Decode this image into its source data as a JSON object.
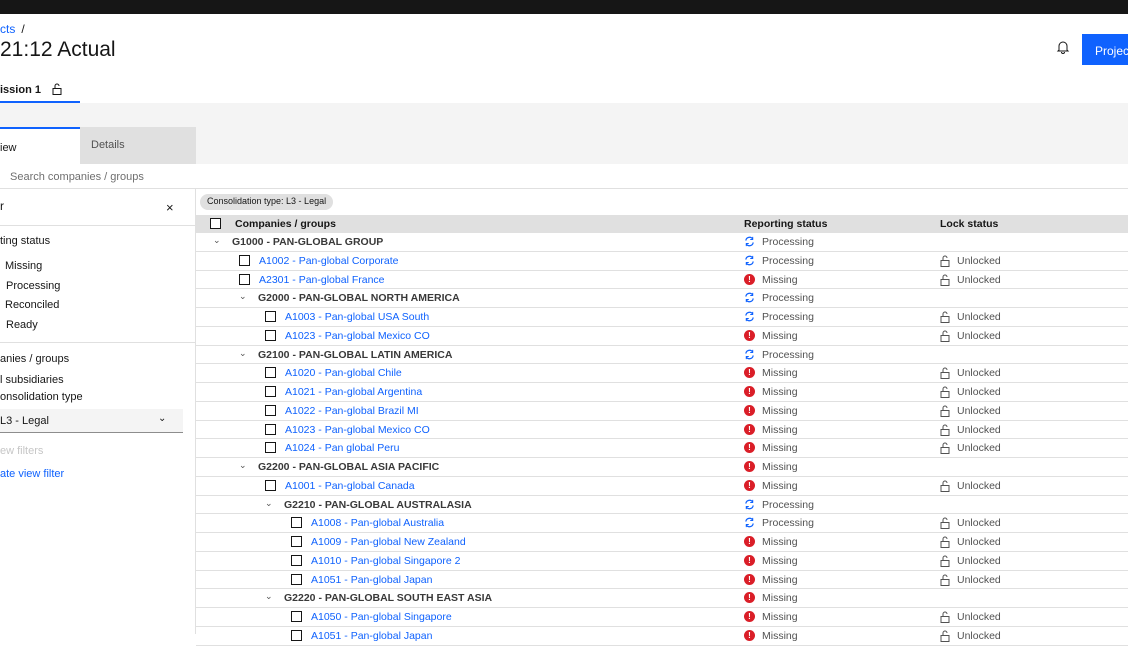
{
  "header": {
    "breadcrumb": "cts",
    "breadcrumb_sep": "/",
    "title": "21:12 Actual",
    "project_button": "Project"
  },
  "subtab": {
    "label": "ission 1"
  },
  "tabs": [
    {
      "label": "iew"
    },
    {
      "label": "Details"
    }
  ],
  "search": {
    "placeholder": "Search companies / groups"
  },
  "filter": {
    "title": "r",
    "close": "×",
    "reporting_heading": "ting status",
    "statuses": [
      "Missing",
      "Processing",
      "Reconciled",
      "Ready"
    ],
    "companies_heading": "anies / groups",
    "subsidiaries": "l subsidiaries",
    "consolidation_label": "onsolidation type",
    "consolidation_value": "L3 - Legal",
    "view_filters": "ew filters",
    "create_filter": "ate view filter"
  },
  "chip": "Consolidation type: L3 - Legal",
  "table": {
    "columns": [
      "Companies / groups",
      "Reporting status",
      "Lock status"
    ],
    "rows": [
      {
        "type": "group",
        "level": 0,
        "label": "G1000 - PAN-GLOBAL GROUP",
        "status": "Processing",
        "lock": ""
      },
      {
        "type": "company",
        "level": 1,
        "label": "A1002 - Pan-global Corporate",
        "status": "Processing",
        "lock": "Unlocked"
      },
      {
        "type": "company",
        "level": 1,
        "label": "A2301 - Pan-global France",
        "status": "Missing",
        "lock": "Unlocked"
      },
      {
        "type": "group",
        "level": 1,
        "label": "G2000 - PAN-GLOBAL NORTH AMERICA",
        "status": "Processing",
        "lock": ""
      },
      {
        "type": "company",
        "level": 2,
        "label": "A1003 - Pan-global USA South",
        "status": "Processing",
        "lock": "Unlocked"
      },
      {
        "type": "company",
        "level": 2,
        "label": "A1023 - Pan-global Mexico CO",
        "status": "Missing",
        "lock": "Unlocked"
      },
      {
        "type": "group",
        "level": 1,
        "label": "G2100 - PAN-GLOBAL LATIN AMERICA",
        "status": "Processing",
        "lock": ""
      },
      {
        "type": "company",
        "level": 2,
        "label": "A1020 - Pan-global Chile",
        "status": "Missing",
        "lock": "Unlocked"
      },
      {
        "type": "company",
        "level": 2,
        "label": "A1021 - Pan-global Argentina",
        "status": "Missing",
        "lock": "Unlocked"
      },
      {
        "type": "company",
        "level": 2,
        "label": "A1022 - Pan-global Brazil MI",
        "status": "Missing",
        "lock": "Unlocked"
      },
      {
        "type": "company",
        "level": 2,
        "label": "A1023 - Pan-global Mexico CO",
        "status": "Missing",
        "lock": "Unlocked"
      },
      {
        "type": "company",
        "level": 2,
        "label": "A1024 - Pan global Peru",
        "status": "Missing",
        "lock": "Unlocked"
      },
      {
        "type": "group",
        "level": 1,
        "label": "G2200 - PAN-GLOBAL ASIA PACIFIC",
        "status": "Missing",
        "lock": ""
      },
      {
        "type": "company",
        "level": 2,
        "label": "A1001 - Pan-global Canada",
        "status": "Missing",
        "lock": "Unlocked"
      },
      {
        "type": "group",
        "level": 2,
        "label": "G2210 - PAN-GLOBAL AUSTRALASIA",
        "status": "Processing",
        "lock": ""
      },
      {
        "type": "company",
        "level": 3,
        "label": "A1008 - Pan-global Australia",
        "status": "Processing",
        "lock": "Unlocked"
      },
      {
        "type": "company",
        "level": 3,
        "label": "A1009 - Pan-global New Zealand",
        "status": "Missing",
        "lock": "Unlocked"
      },
      {
        "type": "company",
        "level": 3,
        "label": "A1010 - Pan-global Singapore 2",
        "status": "Missing",
        "lock": "Unlocked"
      },
      {
        "type": "company",
        "level": 3,
        "label": "A1051 - Pan-global Japan",
        "status": "Missing",
        "lock": "Unlocked"
      },
      {
        "type": "group",
        "level": 2,
        "label": "G2220 - PAN-GLOBAL SOUTH EAST ASIA",
        "status": "Missing",
        "lock": ""
      },
      {
        "type": "company",
        "level": 3,
        "label": "A1050 - Pan-global Singapore",
        "status": "Missing",
        "lock": "Unlocked"
      },
      {
        "type": "company",
        "level": 3,
        "label": "A1051 - Pan-global Japan",
        "status": "Missing",
        "lock": "Unlocked"
      }
    ]
  },
  "colors": {
    "accent": "#0f62fe",
    "missing": "#da1e28",
    "processing": "#0f62fe"
  }
}
